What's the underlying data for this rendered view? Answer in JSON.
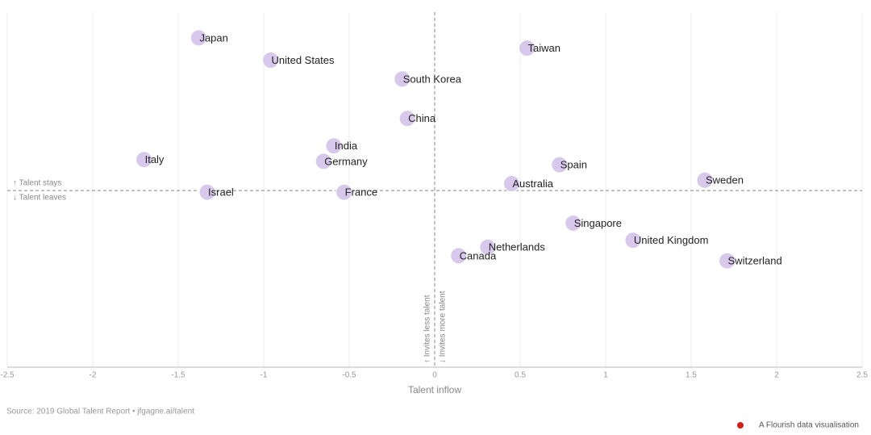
{
  "chart_data": {
    "type": "scatter",
    "x_label": "Talent inflow",
    "annotations": [
      "↑ Talent stays",
      "↓ Talent leaves",
      "↑ Invites less talent",
      "↓ Invites more talent"
    ],
    "source": "Source: 2019 Global Talent Report • jfgagne.ai/talent",
    "credit": "A Flourish data visualisation",
    "labels": [
      "Japan",
      "United States",
      "Taiwan",
      "South Korea",
      "China",
      "India",
      "Italy",
      "Germany",
      "Spain",
      "Australia",
      "Sweden",
      "Israel",
      "France",
      "Singapore",
      "United Kingdom",
      "Netherlands",
      "Canada",
      "Switzerland"
    ],
    "x": [
      -1.38,
      -0.96,
      0.54,
      -0.19,
      -0.16,
      -0.59,
      -1.7,
      -0.65,
      0.73,
      0.45,
      1.58,
      -1.33,
      -0.53,
      0.81,
      1.16,
      0.31,
      0.14,
      1.71
    ],
    "values": [
      0.89,
      0.76,
      0.83,
      0.65,
      0.42,
      0.26,
      0.18,
      0.17,
      0.15,
      0.04,
      0.06,
      -0.01,
      -0.01,
      -0.19,
      -0.29,
      -0.33,
      -0.38,
      -0.41
    ],
    "color": "#d8c9ec",
    "xlim": [
      -2.5,
      2.5
    ],
    "ylim": [
      -1.03,
      1.04
    ],
    "xticks": [
      -2.5,
      -2,
      -1.5,
      -1,
      -0.5,
      0,
      0.5,
      1,
      1.5,
      2,
      2.5
    ],
    "grid": true
  }
}
